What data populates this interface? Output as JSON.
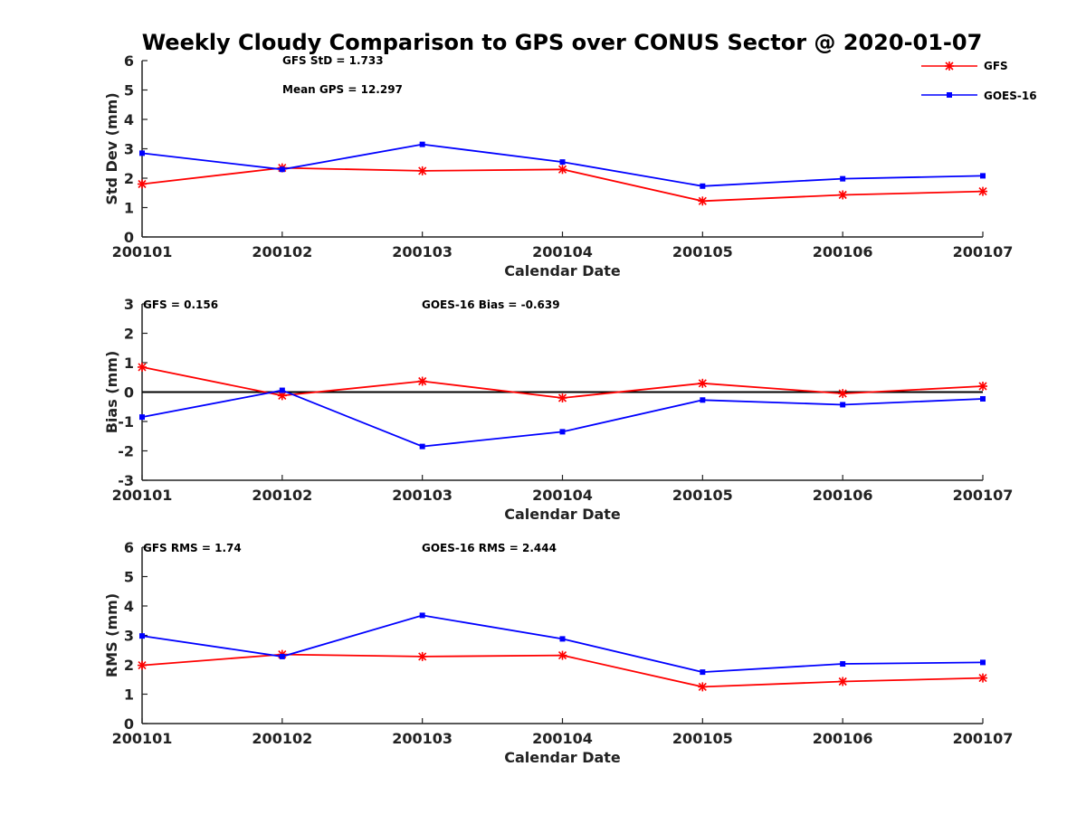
{
  "title": "Weekly Cloudy Comparison to GPS over CONUS Sector @ 2020-01-07",
  "legend": {
    "placement": "top-right",
    "items": [
      {
        "name": "GFS",
        "color": "#ff0000",
        "marker": "star"
      },
      {
        "name": "GOES-16",
        "color": "#0000ff",
        "marker": "square"
      }
    ]
  },
  "chart_data": [
    {
      "type": "line",
      "xlabel": "Calendar Date",
      "ylabel": "Std Dev (mm)",
      "ylim": [
        0,
        6
      ],
      "yticks": [
        0,
        1,
        2,
        3,
        4,
        5,
        6
      ],
      "x": [
        "200101",
        "200102",
        "200103",
        "200104",
        "200105",
        "200106",
        "200107"
      ],
      "annotations": [
        "GFS StD = 1.733",
        "Mean GPS = 12.297"
      ],
      "zero_line": false,
      "series": [
        {
          "name": "GFS",
          "color": "#ff0000",
          "values": [
            1.8,
            2.35,
            2.25,
            2.3,
            1.22,
            1.43,
            1.55
          ]
        },
        {
          "name": "GOES-16",
          "color": "#0000ff",
          "values": [
            2.85,
            2.3,
            3.15,
            2.55,
            1.73,
            1.98,
            2.08
          ]
        }
      ]
    },
    {
      "type": "line",
      "xlabel": "Calendar Date",
      "ylabel": "Bias (mm)",
      "ylim": [
        -3,
        3
      ],
      "yticks": [
        -3,
        -2,
        -1,
        0,
        1,
        2,
        3
      ],
      "x": [
        "200101",
        "200102",
        "200103",
        "200104",
        "200105",
        "200106",
        "200107"
      ],
      "annotations": [
        "GFS = 0.156",
        "GOES-16 Bias  = -0.639"
      ],
      "zero_line": true,
      "series": [
        {
          "name": "GFS",
          "color": "#ff0000",
          "values": [
            0.85,
            -0.12,
            0.37,
            -0.2,
            0.3,
            -0.05,
            0.2
          ]
        },
        {
          "name": "GOES-16",
          "color": "#0000ff",
          "values": [
            -0.85,
            0.06,
            -1.85,
            -1.35,
            -0.27,
            -0.43,
            -0.23
          ]
        }
      ]
    },
    {
      "type": "line",
      "xlabel": "Calendar Date",
      "ylabel": "RMS (mm)",
      "ylim": [
        0,
        6
      ],
      "yticks": [
        0,
        1,
        2,
        3,
        4,
        5,
        6
      ],
      "x": [
        "200101",
        "200102",
        "200103",
        "200104",
        "200105",
        "200106",
        "200107"
      ],
      "annotations": [
        "GFS RMS = 1.74",
        "GOES-16 RMS = 2.444"
      ],
      "zero_line": false,
      "series": [
        {
          "name": "GFS",
          "color": "#ff0000",
          "values": [
            1.98,
            2.35,
            2.28,
            2.32,
            1.25,
            1.43,
            1.55
          ]
        },
        {
          "name": "GOES-16",
          "color": "#0000ff",
          "values": [
            2.98,
            2.28,
            3.68,
            2.88,
            1.75,
            2.03,
            2.08
          ]
        }
      ]
    }
  ]
}
